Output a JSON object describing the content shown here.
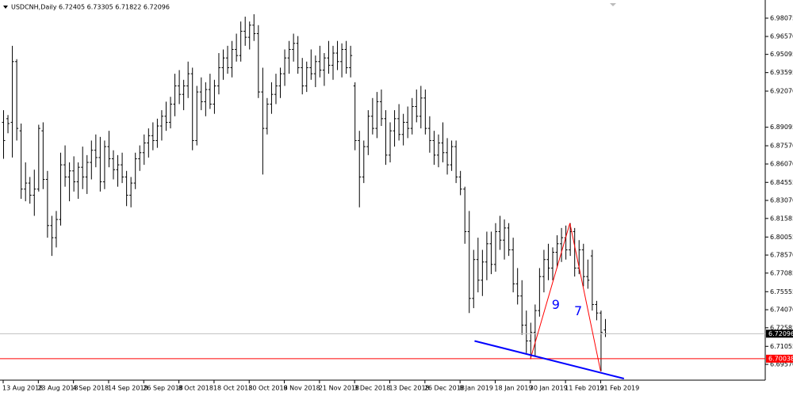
{
  "chart_data": {
    "type": "ohlc",
    "title": "USDCNH,Daily  6.72405 6.73305 6.71822 6.72096",
    "categories": [
      "13 Aug 2018",
      null,
      null,
      null,
      null,
      null,
      null,
      null,
      "23 Aug 2018",
      null,
      null,
      null,
      null,
      null,
      null,
      null,
      "4 Sep 2018",
      null,
      null,
      null,
      null,
      null,
      null,
      null,
      "14 Sep 2018",
      null,
      null,
      null,
      null,
      null,
      null,
      null,
      "26 Sep 2018",
      null,
      null,
      null,
      null,
      null,
      null,
      null,
      "8 Oct 2018",
      null,
      null,
      null,
      null,
      null,
      null,
      null,
      "18 Oct 2018",
      null,
      null,
      null,
      null,
      null,
      null,
      null,
      "30 Oct 2018",
      null,
      null,
      null,
      null,
      null,
      null,
      null,
      "9 Nov 2018",
      null,
      null,
      null,
      null,
      null,
      null,
      null,
      "21 Nov 2018",
      null,
      null,
      null,
      null,
      null,
      null,
      null,
      "3 Dec 2018",
      null,
      null,
      null,
      null,
      null,
      null,
      null,
      "13 Dec 2018",
      null,
      null,
      null,
      null,
      null,
      null,
      null,
      "26 Dec 2018",
      null,
      null,
      null,
      null,
      null,
      null,
      null,
      "8 Jan 2019",
      null,
      null,
      null,
      null,
      null,
      null,
      null,
      "18 Jan 2019",
      null,
      null,
      null,
      null,
      null,
      null,
      null,
      "30 Jan 2019",
      null,
      null,
      null,
      null,
      null,
      null,
      null,
      "11 Feb 2019",
      null,
      null,
      null,
      null,
      null,
      null,
      null,
      "21 Feb 2019",
      null
    ],
    "ohlc": [
      [
        6.895,
        6.905,
        6.865,
        6.88
      ],
      [
        6.898,
        6.901,
        6.886,
        6.894
      ],
      [
        6.895,
        6.958,
        6.866,
        6.945
      ],
      [
        6.945,
        6.947,
        6.88,
        6.89
      ],
      [
        6.888,
        6.894,
        6.832,
        6.84
      ],
      [
        6.84,
        6.862,
        6.83,
        6.845
      ],
      [
        6.845,
        6.85,
        6.828,
        6.835
      ],
      [
        6.835,
        6.856,
        6.818,
        6.84
      ],
      [
        6.84,
        6.893,
        6.838,
        6.89
      ],
      [
        6.888,
        6.895,
        6.84,
        6.848
      ],
      [
        6.848,
        6.855,
        6.8,
        6.81
      ],
      [
        6.81,
        6.818,
        6.785,
        6.8
      ],
      [
        6.8,
        6.822,
        6.792,
        6.815
      ],
      [
        6.815,
        6.87,
        6.81,
        6.86
      ],
      [
        6.86,
        6.876,
        6.842,
        6.85
      ],
      [
        6.85,
        6.862,
        6.83,
        6.855
      ],
      [
        6.855,
        6.867,
        6.838,
        6.846
      ],
      [
        6.846,
        6.862,
        6.832,
        6.858
      ],
      [
        6.858,
        6.875,
        6.84,
        6.85
      ],
      [
        6.85,
        6.868,
        6.836,
        6.862
      ],
      [
        6.862,
        6.88,
        6.848,
        6.872
      ],
      [
        6.872,
        6.885,
        6.858,
        6.866
      ],
      [
        6.866,
        6.883,
        6.838,
        6.846
      ],
      [
        6.846,
        6.88,
        6.84,
        6.875
      ],
      [
        6.875,
        6.888,
        6.858,
        6.865
      ],
      [
        6.865,
        6.872,
        6.848,
        6.856
      ],
      [
        6.856,
        6.868,
        6.842,
        6.86
      ],
      [
        6.86,
        6.87,
        6.845,
        6.85
      ],
      [
        6.85,
        6.855,
        6.826,
        6.835
      ],
      [
        6.835,
        6.85,
        6.825,
        6.845
      ],
      [
        6.845,
        6.87,
        6.84,
        6.865
      ],
      [
        6.865,
        6.876,
        6.855,
        6.87
      ],
      [
        6.87,
        6.885,
        6.86,
        6.878
      ],
      [
        6.878,
        6.89,
        6.866,
        6.884
      ],
      [
        6.884,
        6.895,
        6.872,
        6.88
      ],
      [
        6.88,
        6.898,
        6.874,
        6.892
      ],
      [
        6.892,
        6.905,
        6.88,
        6.9
      ],
      [
        6.9,
        6.912,
        6.888,
        6.895
      ],
      [
        6.895,
        6.916,
        6.89,
        6.91
      ],
      [
        6.91,
        6.935,
        6.9,
        6.925
      ],
      [
        6.925,
        6.938,
        6.91,
        6.918
      ],
      [
        6.918,
        6.93,
        6.905,
        6.925
      ],
      [
        6.925,
        6.945,
        6.915,
        6.935
      ],
      [
        6.935,
        6.94,
        6.872,
        6.88
      ],
      [
        6.88,
        6.925,
        6.876,
        6.92
      ],
      [
        6.92,
        6.932,
        6.905,
        6.912
      ],
      [
        6.912,
        6.928,
        6.9,
        6.922
      ],
      [
        6.922,
        6.935,
        6.906,
        6.91
      ],
      [
        6.91,
        6.93,
        6.902,
        6.925
      ],
      [
        6.925,
        6.952,
        6.918,
        6.94
      ],
      [
        6.94,
        6.955,
        6.93,
        6.948
      ],
      [
        6.948,
        6.958,
        6.935,
        6.94
      ],
      [
        6.94,
        6.962,
        6.932,
        6.955
      ],
      [
        6.955,
        6.968,
        6.945,
        6.95
      ],
      [
        6.95,
        6.978,
        6.945,
        6.97
      ],
      [
        6.97,
        6.982,
        6.958,
        6.965
      ],
      [
        6.965,
        6.978,
        6.955,
        6.975
      ],
      [
        6.975,
        6.984,
        6.962,
        6.968
      ],
      [
        6.968,
        6.975,
        6.915,
        6.92
      ],
      [
        6.92,
        6.94,
        6.852,
        6.89
      ],
      [
        6.89,
        6.915,
        6.885,
        6.91
      ],
      [
        6.91,
        6.928,
        6.902,
        6.918
      ],
      [
        6.918,
        6.935,
        6.91,
        6.925
      ],
      [
        6.925,
        6.94,
        6.915,
        6.935
      ],
      [
        6.935,
        6.955,
        6.925,
        6.948
      ],
      [
        6.948,
        6.962,
        6.935,
        6.955
      ],
      [
        6.955,
        6.968,
        6.945,
        6.96
      ],
      [
        6.96,
        6.966,
        6.935,
        6.94
      ],
      [
        6.94,
        6.948,
        6.918,
        6.925
      ],
      [
        6.925,
        6.945,
        6.92,
        6.94
      ],
      [
        6.94,
        6.955,
        6.93,
        6.935
      ],
      [
        6.935,
        6.95,
        6.924,
        6.945
      ],
      [
        6.945,
        6.958,
        6.932,
        6.938
      ],
      [
        6.938,
        6.952,
        6.925,
        6.948
      ],
      [
        6.948,
        6.962,
        6.935,
        6.942
      ],
      [
        6.942,
        6.958,
        6.93,
        6.952
      ],
      [
        6.952,
        6.962,
        6.938,
        6.945
      ],
      [
        6.945,
        6.96,
        6.932,
        6.955
      ],
      [
        6.955,
        6.962,
        6.935,
        6.94
      ],
      [
        6.94,
        6.958,
        6.932,
        6.95
      ],
      [
        6.925,
        6.928,
        6.872,
        6.88
      ],
      [
        6.88,
        6.888,
        6.825,
        6.85
      ],
      [
        6.85,
        6.88,
        6.845,
        6.875
      ],
      [
        6.875,
        6.905,
        6.868,
        6.9
      ],
      [
        6.9,
        6.915,
        6.885,
        6.89
      ],
      [
        6.89,
        6.92,
        6.882,
        6.912
      ],
      [
        6.912,
        6.922,
        6.892,
        6.898
      ],
      [
        6.898,
        6.905,
        6.86,
        6.868
      ],
      [
        6.868,
        6.895,
        6.862,
        6.888
      ],
      [
        6.888,
        6.905,
        6.875,
        6.898
      ],
      [
        6.898,
        6.91,
        6.88,
        6.885
      ],
      [
        6.885,
        6.902,
        6.876,
        6.895
      ],
      [
        6.895,
        6.908,
        6.882,
        6.89
      ],
      [
        6.89,
        6.915,
        6.885,
        6.908
      ],
      [
        6.908,
        6.922,
        6.895,
        6.9
      ],
      [
        6.9,
        6.925,
        6.89,
        6.915
      ],
      [
        6.915,
        6.922,
        6.885,
        6.89
      ],
      [
        6.89,
        6.9,
        6.87,
        6.88
      ],
      [
        6.88,
        6.888,
        6.86,
        6.868
      ],
      [
        6.868,
        6.885,
        6.858,
        6.878
      ],
      [
        6.878,
        6.895,
        6.862,
        6.87
      ],
      [
        6.87,
        6.882,
        6.852,
        6.86
      ],
      [
        6.86,
        6.88,
        6.855,
        6.875
      ],
      [
        6.875,
        6.88,
        6.845,
        6.85
      ],
      [
        6.85,
        6.855,
        6.835,
        6.84
      ],
      [
        6.84,
        6.842,
        6.795,
        6.805
      ],
      [
        6.805,
        6.822,
        6.738,
        6.75
      ],
      [
        6.75,
        6.79,
        6.742,
        6.782
      ],
      [
        6.782,
        6.8,
        6.755,
        6.765
      ],
      [
        6.765,
        6.79,
        6.752,
        6.78
      ],
      [
        6.78,
        6.805,
        6.765,
        6.795
      ],
      [
        6.795,
        6.805,
        6.77,
        6.778
      ],
      [
        6.778,
        6.812,
        6.772,
        6.805
      ],
      [
        6.805,
        6.818,
        6.79,
        6.798
      ],
      [
        6.798,
        6.815,
        6.782,
        6.808
      ],
      [
        6.808,
        6.812,
        6.785,
        6.79
      ],
      [
        6.79,
        6.8,
        6.755,
        6.762
      ],
      [
        6.762,
        6.775,
        6.745,
        6.752
      ],
      [
        6.752,
        6.765,
        6.72,
        6.728
      ],
      [
        6.728,
        6.74,
        6.705,
        6.715
      ],
      [
        6.715,
        6.73,
        6.7,
        6.722
      ],
      [
        6.722,
        6.745,
        6.702,
        6.74
      ],
      [
        6.74,
        6.775,
        6.735,
        6.768
      ],
      [
        6.768,
        6.79,
        6.755,
        6.782
      ],
      [
        6.782,
        6.795,
        6.765,
        6.775
      ],
      [
        6.775,
        6.792,
        6.765,
        6.788
      ],
      [
        6.788,
        6.802,
        6.775,
        6.795
      ],
      [
        6.795,
        6.808,
        6.78,
        6.8
      ],
      [
        6.8,
        6.81,
        6.782,
        6.79
      ],
      [
        6.79,
        6.812,
        6.785,
        6.805
      ],
      [
        6.805,
        6.808,
        6.768,
        6.775
      ],
      [
        6.775,
        6.798,
        6.77,
        6.79
      ],
      [
        6.79,
        6.795,
        6.76,
        6.768
      ],
      [
        6.768,
        6.782,
        6.758,
        6.765
      ],
      [
        6.785,
        6.79,
        6.74,
        6.745
      ],
      [
        6.745,
        6.748,
        6.732,
        6.738
      ],
      [
        6.738,
        6.74,
        6.69,
        6.722
      ],
      [
        6.72405,
        6.73305,
        6.71822,
        6.72096
      ]
    ],
    "color": "#000000",
    "ylim": [
      6.6827,
      6.9905
    ],
    "yticks": [
      6.98075,
      {
        "value": 6.9657,
        "label": "6.96570"
      },
      6.95095,
      6.93595,
      {
        "value": 6.9207,
        "label": "6.92070"
      },
      6.89095,
      {
        "value": 6.8757,
        "label": "6.87570"
      },
      {
        "value": 6.8607,
        "label": "6.86070"
      },
      6.84555,
      {
        "value": 6.8307,
        "label": "6.83070"
      },
      6.81585,
      6.80055,
      {
        "value": 6.7857,
        "label": "6.78570"
      },
      6.77085,
      6.75555,
      {
        "value": 6.7407,
        "label": "6.74070"
      },
      6.72585,
      6.71055,
      {
        "value": 6.6957,
        "label": "6.69570"
      }
    ],
    "price_lines": [
      {
        "value": 6.72096,
        "color": "#c0c0c0",
        "box": "#000000"
      },
      {
        "value": 6.70038,
        "color": "#ff0000",
        "box": "#ff0000"
      }
    ],
    "trendlines": [
      {
        "color": "#ff0000",
        "x": [
          120,
          129,
          136
        ],
        "y": [
          6.7,
          6.812,
          6.69
        ],
        "labels": [
          "9",
          "7"
        ],
        "label_color": "#0000ff"
      },
      {
        "color": "#0000ff",
        "x": [
          107.3,
          141.3
        ],
        "y": [
          6.715,
          6.684
        ]
      }
    ]
  }
}
